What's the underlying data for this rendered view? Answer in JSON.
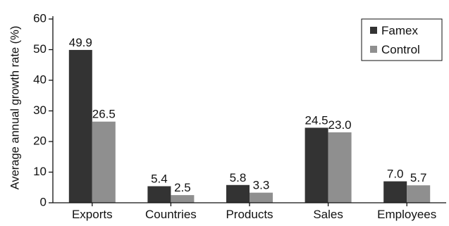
{
  "chart_data": {
    "type": "bar",
    "title": "",
    "xlabel": "",
    "ylabel": "Average annual growth rate (%)",
    "ylim": [
      0,
      60
    ],
    "yticks": [
      0,
      10,
      20,
      30,
      40,
      50,
      60
    ],
    "categories": [
      "Exports",
      "Countries",
      "Products",
      "Sales",
      "Employees"
    ],
    "series": [
      {
        "name": "Famex",
        "values": [
          49.9,
          5.4,
          5.8,
          24.5,
          7.0
        ],
        "labels": [
          "49.9",
          "5.4",
          "5.8",
          "24.5",
          "7.0"
        ],
        "color": "#333333"
      },
      {
        "name": "Control",
        "values": [
          26.5,
          2.5,
          3.3,
          23.0,
          5.7
        ],
        "labels": [
          "26.5",
          "2.5",
          "3.3",
          "23.0",
          "5.7"
        ],
        "color": "#8f8f8f"
      }
    ],
    "legend": "top-right",
    "grid": false
  }
}
